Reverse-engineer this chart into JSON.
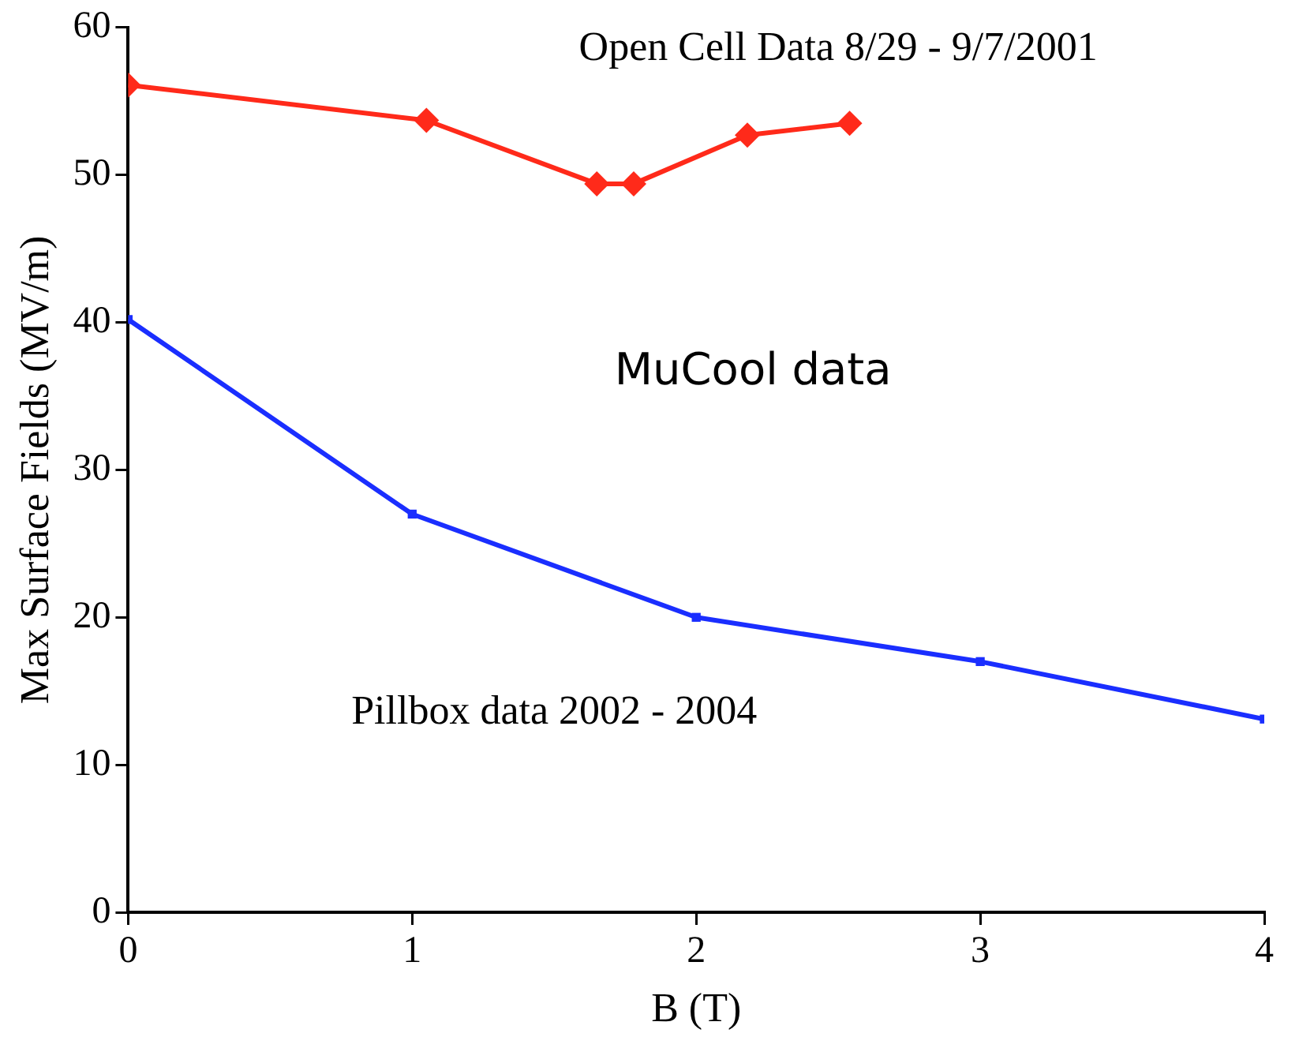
{
  "chart_data": {
    "type": "line",
    "xlabel": "B (T)",
    "ylabel": "Max Surface Fields (MV/m)",
    "xlim": [
      0,
      4
    ],
    "xticks": [
      0,
      1,
      2,
      3,
      4
    ],
    "ylim": [
      0,
      60
    ],
    "yticks": [
      0,
      10,
      20,
      30,
      40,
      50,
      60
    ],
    "grid": false,
    "legend": false,
    "series": [
      {
        "color": "#ff2a1a",
        "marker": "diamond",
        "x": [
          0,
          1.05,
          1.65,
          1.78,
          2.18,
          2.54
        ],
        "values": [
          56.1,
          53.7,
          49.4,
          49.4,
          52.7,
          53.5
        ]
      },
      {
        "color": "#1a2eff",
        "marker": "square",
        "x": [
          0,
          1,
          2,
          3,
          4
        ],
        "values": [
          40.2,
          27,
          20,
          17,
          13.1
        ]
      }
    ],
    "annotations": [
      "Open Cell Data 8/29 - 9/7/2001",
      "MuCool data",
      "Pillbox data 2002 - 2004"
    ]
  }
}
